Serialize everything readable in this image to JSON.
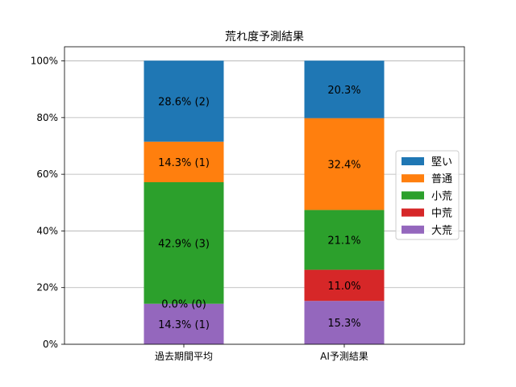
{
  "chart_data": {
    "type": "bar",
    "stacked": true,
    "title": "荒れ度予測結果",
    "categories": [
      "過去期間平均",
      "AI予測結果"
    ],
    "ylim": [
      0,
      100
    ],
    "y_ticks": [
      {
        "value": 0,
        "label": "0%"
      },
      {
        "value": 20,
        "label": "20%"
      },
      {
        "value": 40,
        "label": "40%"
      },
      {
        "value": 60,
        "label": "60%"
      },
      {
        "value": 80,
        "label": "80%"
      },
      {
        "value": 100,
        "label": "100%"
      }
    ],
    "grid": "horizontal",
    "legend_position": "right",
    "series": [
      {
        "name": "大荒",
        "color": "#9467bd",
        "values": [
          14.3,
          15.3
        ],
        "labels": [
          "14.3% (1)",
          "15.3%"
        ]
      },
      {
        "name": "中荒",
        "color": "#d62728",
        "values": [
          0.0,
          11.0
        ],
        "labels": [
          "0.0% (0)",
          "11.0%"
        ]
      },
      {
        "name": "小荒",
        "color": "#2ca02c",
        "values": [
          42.9,
          21.1
        ],
        "labels": [
          "42.9% (3)",
          "21.1%"
        ]
      },
      {
        "name": "普通",
        "color": "#ff7f0e",
        "values": [
          14.3,
          32.4
        ],
        "labels": [
          "14.3% (1)",
          "32.4%"
        ]
      },
      {
        "name": "堅い",
        "color": "#1f77b4",
        "values": [
          28.6,
          20.3
        ],
        "labels": [
          "28.6% (2)",
          "20.3%"
        ]
      }
    ],
    "legend_order": [
      "堅い",
      "普通",
      "小荒",
      "中荒",
      "大荒"
    ]
  }
}
